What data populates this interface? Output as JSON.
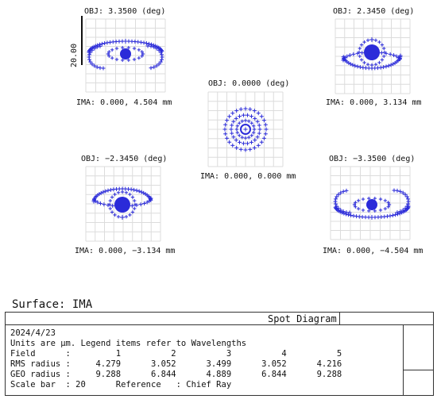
{
  "accent_color": "#2b2bd9",
  "spots": [
    {
      "id": "obj-3.35",
      "obj_label": "OBJ: 3.3500 (deg)",
      "ima_label": "IMA: 0.000, 4.504 mm",
      "shape": "bow-up"
    },
    {
      "id": "obj-2.345",
      "obj_label": "OBJ: 2.3450 (deg)",
      "ima_label": "IMA: 0.000, 3.134 mm",
      "shape": "cup-up"
    },
    {
      "id": "obj-0",
      "obj_label": "OBJ: 0.0000 (deg)",
      "ima_label": "IMA: 0.000, 0.000 mm",
      "shape": "center"
    },
    {
      "id": "obj-neg2.345",
      "obj_label": "OBJ: −2.3450 (deg)",
      "ima_label": "IMA: 0.000, −3.134 mm",
      "shape": "cup-down"
    },
    {
      "id": "obj-neg3.35",
      "obj_label": "OBJ: −3.3500 (deg)",
      "ima_label": "IMA: 0.000, −4.504 mm",
      "shape": "bow-down"
    }
  ],
  "scale_bar": "20.00",
  "surface_title": "Surface: IMA",
  "panel": {
    "title": "Spot Diagram",
    "lines": [
      "2024/4/23",
      "Units are µm. Legend items refer to Wavelengths",
      "Field      :         1          2          3          4          5",
      "RMS radius :     4.279      3.052      3.499      3.052      4.216",
      "GEO radius :     9.288      6.844      4.889      6.844      9.288",
      "Scale bar  : 20      Reference   : Chief Ray"
    ]
  }
}
